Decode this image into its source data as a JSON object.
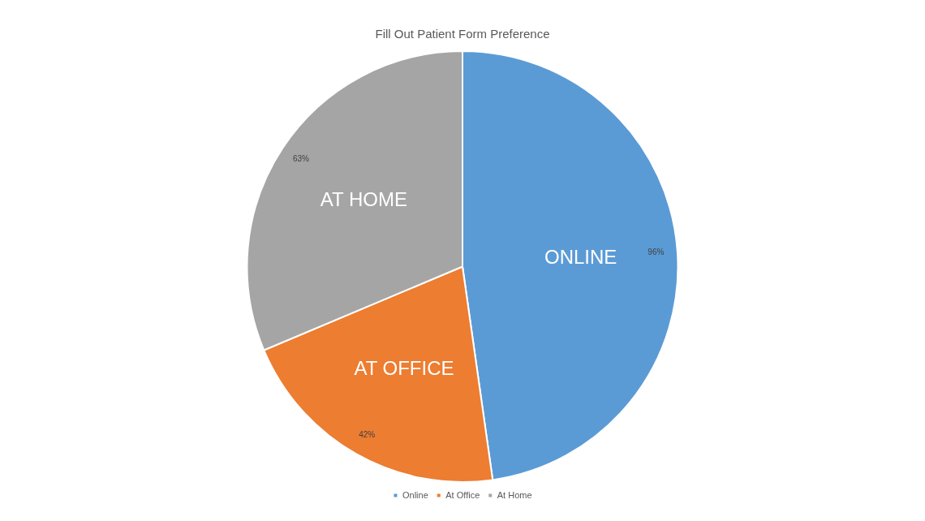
{
  "chart_data": {
    "type": "pie",
    "title": "Fill Out Patient Form Preference",
    "categories": [
      "Online",
      "At Office",
      "At Home"
    ],
    "values": [
      96,
      42,
      63
    ],
    "colors": [
      "#5b9bd5",
      "#ed7d31",
      "#a5a5a5"
    ],
    "value_labels": [
      "96%",
      "42%",
      "63%"
    ],
    "annotations": [
      {
        "text": "ONLINE",
        "x": "Online"
      },
      {
        "text": "AT OFFICE",
        "x": "At Office"
      },
      {
        "text": "AT HOME",
        "x": "At Home"
      }
    ],
    "legend": "bottom"
  }
}
